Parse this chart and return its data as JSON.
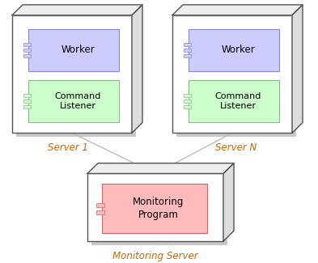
{
  "bg_color": "#ffffff",
  "worker_fill": "#ccccff",
  "worker_edge": "#8888cc",
  "cmd_fill": "#ccffcc",
  "cmd_edge": "#88bb88",
  "monitor_inner_fill": "#ffbbbb",
  "monitor_inner_edge": "#cc6666",
  "box_face": "#ffffff",
  "box_edge": "#555555",
  "top_face": "#eeeeee",
  "right_face": "#dddddd",
  "shadow_color": "#bbbbbb",
  "connector_color": "#bbbbbb",
  "label_color": "#cc6600",
  "text_color": "#000000",
  "server1_label": "Server 1",
  "serverN_label": "Server N",
  "monitoring_label": "Monitoring Server",
  "worker_text": "Worker",
  "cmd_text": "Command\nListener",
  "monitor_text": "Monitoring\nProgram"
}
